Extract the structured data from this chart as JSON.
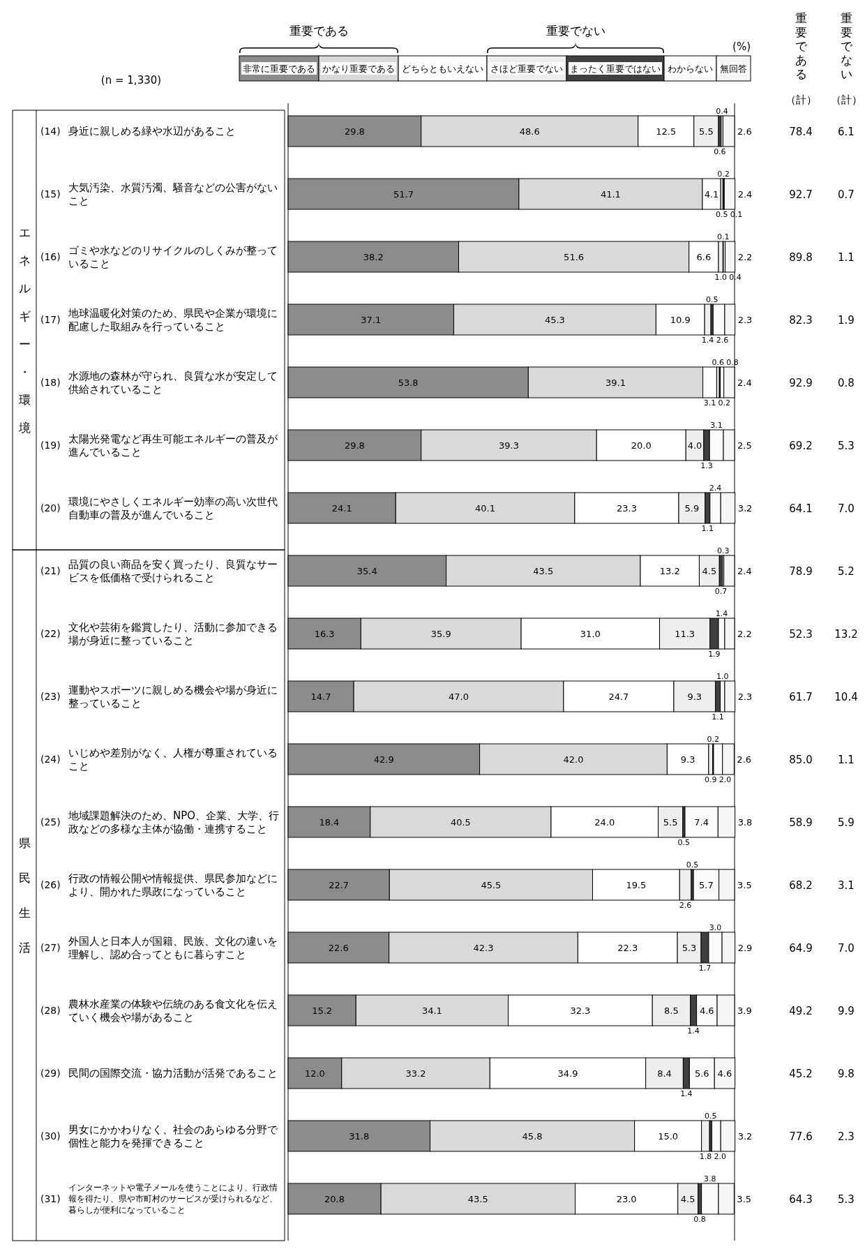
{
  "chart_data": {
    "type": "bar",
    "orientation": "horizontal",
    "stacked": true,
    "legend": "top",
    "xlim": [
      0,
      100
    ],
    "categories": [
      "(14) 身近に親しめる緑や水辺があること",
      "(15) 大気汚染、水質汚濁、騒音などの公害がないこと",
      "(16) ゴミや水などのリサイクルのしくみが整っていること",
      "(17) 地球温暖化対策のため、県民や企業が環境に配慮した取組みを行っていること",
      "(18) 水源地の森林が守られ、良質な水が安定して供給されていること",
      "(19) 太陽光発電など再生可能エネルギーの普及が進んでいること",
      "(20) 環境にやさしくエネルギー効率の高い次世代自動車の普及が進んでいること",
      "(21) 品質の良い商品を安く買ったり、良質なサービスを低価格で受けられること",
      "(22) 文化や芸術を鑑賞したり、活動に参加できる場が身近に整っていること",
      "(23) 運動やスポーツに親しめる機会や場が身近に整っていること",
      "(24) いじめや差別がなく、人権が尊重されていること",
      "(25) 地域課題解決のため、NPO、企業、大学、行政などの多様な主体が協働・連携すること",
      "(26) 行政の情報公開や情報提供、県民参加などにより、開かれた県政になっていること",
      "(27) 外国人と日本人が国籍、民族、文化の違いを理解し、認め合ってともに暮らすこと",
      "(28) 農林水産業の体験や伝統のある食文化を伝えていく機会や場があること",
      "(29) 民間の国際交流・協力活動が活発であること",
      "(30) 男女にかかわりなく、社会のあらゆる分野で個性と能力を発揮できること",
      "(31) インターネットや電子メールを使うことにより、行政情報を得たり、県や市町村のサービスが受けられるなど、暮らしが便利になっていること"
    ],
    "series": [
      {
        "name": "非常に重要である",
        "color": "#8c8c8c",
        "values": [
          29.8,
          51.7,
          38.2,
          37.1,
          53.8,
          29.8,
          24.1,
          35.4,
          16.3,
          14.7,
          42.9,
          18.4,
          22.7,
          22.6,
          15.2,
          12.0,
          31.8,
          20.8
        ],
        "value_labels": [
          "29.8",
          "51.7",
          "38.2",
          "37.1",
          "53.8",
          "29.8",
          "24.1",
          "35.4",
          "16.3",
          "14.7",
          "42.9",
          "18.4",
          "22.7",
          "22.6",
          "15.2",
          "12.0",
          "31.8",
          "20.8"
        ]
      },
      {
        "name": "かなり重要である",
        "color": "#d9d9d9",
        "values": [
          48.6,
          41.1,
          51.6,
          45.3,
          39.1,
          39.3,
          40.1,
          43.5,
          35.9,
          47.0,
          42.0,
          40.5,
          45.5,
          42.3,
          34.1,
          33.2,
          45.8,
          43.5
        ],
        "value_labels": [
          "48.6",
          "41.1",
          "51.6",
          "45.3",
          "39.1",
          "39.3",
          "40.1",
          "43.5",
          "35.9",
          "47.0",
          "42.0",
          "40.5",
          "45.5",
          "42.3",
          "34.1",
          "33.2",
          "45.8",
          "43.5"
        ]
      },
      {
        "name": "どちらともいえない",
        "color": "#ffffff",
        "values": [
          12.5,
          4.1,
          6.6,
          10.9,
          3.1,
          20.0,
          23.3,
          13.2,
          31.0,
          24.7,
          9.3,
          24.0,
          19.5,
          22.3,
          32.3,
          34.9,
          15.0,
          23.0
        ],
        "value_labels": [
          "12.5",
          "4.1",
          "6.6",
          "10.9",
          "3.1",
          "20.0",
          "23.3",
          "13.2",
          "31.0",
          "24.7",
          "9.3",
          "24.0",
          "19.5",
          "22.3",
          "32.3",
          "34.9",
          "15.0",
          "23.0"
        ]
      },
      {
        "name": "さほど重要でない",
        "color": "#eeeeee",
        "values": [
          5.5,
          0.5,
          1.0,
          1.4,
          0.6,
          4.0,
          5.9,
          4.5,
          11.3,
          9.3,
          0.9,
          5.5,
          2.6,
          5.3,
          8.5,
          8.4,
          1.8,
          4.5
        ],
        "value_labels": [
          "5.5",
          "0.5",
          "1.0",
          "1.4",
          "0.6",
          "4.0",
          "5.9",
          "4.5",
          "11.3",
          "9.3",
          "0.9",
          "5.5",
          "2.6",
          "5.3",
          "8.5",
          "8.4",
          "1.8",
          "4.5"
        ]
      },
      {
        "name": "まったく重要ではない",
        "color": "#404040",
        "values": [
          0.6,
          0.2,
          0.1,
          0.5,
          0.2,
          1.3,
          1.1,
          0.7,
          1.9,
          1.1,
          0.2,
          0.5,
          0.5,
          1.7,
          1.4,
          1.4,
          0.5,
          0.8
        ],
        "value_labels": [
          "0.6",
          "0.2",
          "0.1",
          "0.5",
          "0.2",
          "1.3",
          "1.1",
          "0.7",
          "1.9",
          "1.1",
          "0.2",
          "0.5",
          "0.5",
          "1.7",
          "1.4",
          "1.4",
          "0.5",
          "0.8"
        ]
      },
      {
        "name": "わからない",
        "color": "#fafafa",
        "values": [
          0.4,
          0.1,
          0.4,
          2.6,
          0.8,
          3.1,
          2.4,
          0.3,
          1.4,
          1.0,
          2.0,
          7.4,
          5.7,
          3.0,
          4.6,
          5.6,
          2.0,
          3.8
        ],
        "value_labels": [
          "0.4",
          "0.1",
          "0.4",
          "2.6",
          "0.8",
          "3.1",
          "2.4",
          "0.3",
          "1.4",
          "1.0",
          "2.0",
          "7.4",
          "5.7",
          "3.0",
          "4.6",
          "5.6",
          "2.0",
          "3.8"
        ]
      },
      {
        "name": "無回答",
        "color": "#f5f5f5",
        "values": [
          2.6,
          2.4,
          2.2,
          2.3,
          2.4,
          2.5,
          3.2,
          2.4,
          2.2,
          2.3,
          2.6,
          3.8,
          3.5,
          2.9,
          3.9,
          4.6,
          3.2,
          3.5
        ],
        "value_labels": [
          "2.6",
          "2.4",
          "2.2",
          "2.3",
          "2.4",
          "2.5",
          "3.2",
          "2.4",
          "2.2",
          "2.3",
          "2.6",
          "3.8",
          "3.5",
          "2.9",
          "3.9",
          "4.6",
          "3.2",
          "3.5"
        ]
      }
    ],
    "annotations": [
      "(n = 1,330)",
      "(%)",
      "重要である",
      "重要でない",
      "重要である",
      "（計）",
      "重要でない",
      "（計）",
      "エネルギー・環境",
      "県民生活",
      "78.4",
      "6.1",
      "92.7",
      "0.7",
      "89.8",
      "1.1",
      "82.3",
      "1.9",
      "92.9",
      "0.8",
      "69.2",
      "5.3",
      "64.1",
      "7.0",
      "78.9",
      "5.2",
      "52.3",
      "13.2",
      "61.7",
      "10.4",
      "85.0",
      "1.1",
      "58.9",
      "5.9",
      "68.2",
      "3.1",
      "64.9",
      "7.0",
      "49.2",
      "9.9",
      "45.2",
      "9.8",
      "77.6",
      "2.3",
      "64.3",
      "5.3"
    ]
  }
}
